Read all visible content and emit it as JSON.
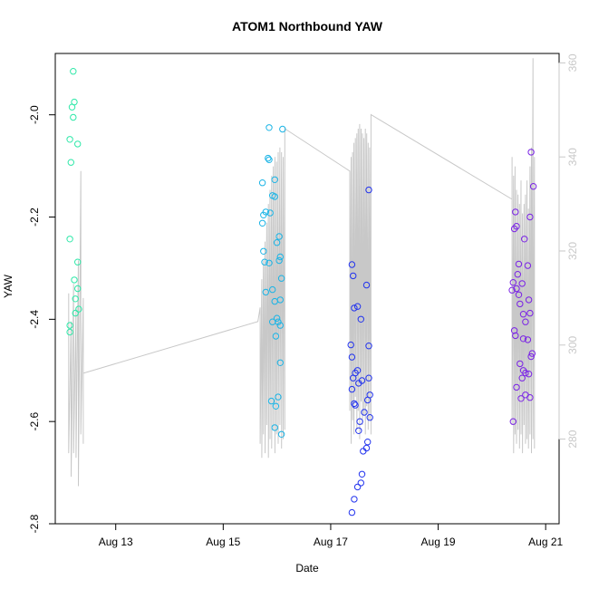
{
  "chart_data": {
    "type": "scatter",
    "title": "ATOM1 Northbound YAW",
    "xlabel": "Date",
    "ylabel": "YAW",
    "xlim": [
      "2014-08-11T21:00",
      "2014-08-21T06:00"
    ],
    "ylim": [
      -2.8,
      -1.88
    ],
    "y2lim": [
      262,
      362
    ],
    "x_ticks": [
      {
        "label": "Aug 13",
        "date": "2014-08-13"
      },
      {
        "label": "Aug 15",
        "date": "2014-08-15"
      },
      {
        "label": "Aug 17",
        "date": "2014-08-17"
      },
      {
        "label": "Aug 19",
        "date": "2014-08-19"
      },
      {
        "label": "Aug 21",
        "date": "2014-08-21"
      }
    ],
    "y_ticks": [
      "-2.8",
      "-2.6",
      "-2.4",
      "-2.2",
      "-2.0"
    ],
    "y2_ticks": [
      "280",
      "300",
      "320",
      "340",
      "360"
    ],
    "colors": {
      "group1": "#2ee8a8",
      "group2": "#1ab4e6",
      "group3": "#2233ee",
      "group4": "#7a22e6",
      "line": "#c8c8c8",
      "axis": "#000000",
      "right_axis": "#c8c8c8"
    },
    "series": [
      {
        "group": "group1",
        "points": [
          [
            "2014-08-12T05:00",
            -1.915
          ],
          [
            "2014-08-12T05:30",
            -1.975
          ],
          [
            "2014-08-12T04:30",
            -1.985
          ],
          [
            "2014-08-12T05:00",
            -2.005
          ],
          [
            "2014-08-12T03:30",
            -2.048
          ],
          [
            "2014-08-12T07:00",
            -2.057
          ],
          [
            "2014-08-12T04:00",
            -2.093
          ],
          [
            "2014-08-12T03:30",
            -2.243
          ],
          [
            "2014-08-12T07:00",
            -2.288
          ],
          [
            "2014-08-12T05:30",
            -2.323
          ],
          [
            "2014-08-12T07:00",
            -2.34
          ],
          [
            "2014-08-12T06:00",
            -2.36
          ],
          [
            "2014-08-12T07:30",
            -2.38
          ],
          [
            "2014-08-12T06:00",
            -2.388
          ],
          [
            "2014-08-12T03:30",
            -2.412
          ],
          [
            "2014-08-12T03:30",
            -2.425
          ]
        ]
      },
      {
        "group": "group2",
        "points": [
          [
            "2014-08-15T20:30",
            -2.025
          ],
          [
            "2014-08-16T02:30",
            -2.028
          ],
          [
            "2014-08-15T20:00",
            -2.085
          ],
          [
            "2014-08-15T20:30",
            -2.088
          ],
          [
            "2014-08-15T23:00",
            -2.127
          ],
          [
            "2014-08-15T17:30",
            -2.133
          ],
          [
            "2014-08-15T22:00",
            -2.158
          ],
          [
            "2014-08-15T23:00",
            -2.16
          ],
          [
            "2014-08-15T19:00",
            -2.19
          ],
          [
            "2014-08-15T21:00",
            -2.192
          ],
          [
            "2014-08-15T18:00",
            -2.196
          ],
          [
            "2014-08-15T17:30",
            -2.212
          ],
          [
            "2014-08-16T01:00",
            -2.238
          ],
          [
            "2014-08-16T00:00",
            -2.25
          ],
          [
            "2014-08-15T18:00",
            -2.267
          ],
          [
            "2014-08-16T01:30",
            -2.278
          ],
          [
            "2014-08-16T01:00",
            -2.285
          ],
          [
            "2014-08-15T18:30",
            -2.288
          ],
          [
            "2014-08-15T20:30",
            -2.29
          ],
          [
            "2014-08-16T02:00",
            -2.32
          ],
          [
            "2014-08-15T22:00",
            -2.342
          ],
          [
            "2014-08-15T19:00",
            -2.347
          ],
          [
            "2014-08-15T23:00",
            -2.365
          ],
          [
            "2014-08-16T01:30",
            -2.362
          ],
          [
            "2014-08-16T00:00",
            -2.398
          ],
          [
            "2014-08-15T22:00",
            -2.405
          ],
          [
            "2014-08-16T00:30",
            -2.405
          ],
          [
            "2014-08-16T01:30",
            -2.412
          ],
          [
            "2014-08-15T23:30",
            -2.433
          ],
          [
            "2014-08-16T01:30",
            -2.485
          ],
          [
            "2014-08-16T00:30",
            -2.552
          ],
          [
            "2014-08-15T21:30",
            -2.56
          ],
          [
            "2014-08-15T23:30",
            -2.57
          ],
          [
            "2014-08-15T23:00",
            -2.612
          ],
          [
            "2014-08-16T02:00",
            -2.625
          ]
        ]
      },
      {
        "group": "group3",
        "points": [
          [
            "2014-08-17T17:00",
            -2.147
          ],
          [
            "2014-08-17T09:30",
            -2.293
          ],
          [
            "2014-08-17T10:00",
            -2.315
          ],
          [
            "2014-08-17T16:00",
            -2.333
          ],
          [
            "2014-08-17T12:00",
            -2.375
          ],
          [
            "2014-08-17T10:30",
            -2.378
          ],
          [
            "2014-08-17T13:30",
            -2.4
          ],
          [
            "2014-08-17T09:00",
            -2.45
          ],
          [
            "2014-08-17T17:00",
            -2.452
          ],
          [
            "2014-08-17T09:30",
            -2.474
          ],
          [
            "2014-08-17T12:00",
            -2.5
          ],
          [
            "2014-08-17T11:00",
            -2.505
          ],
          [
            "2014-08-17T10:00",
            -2.515
          ],
          [
            "2014-08-17T17:00",
            -2.515
          ],
          [
            "2014-08-17T14:00",
            -2.52
          ],
          [
            "2014-08-17T12:30",
            -2.525
          ],
          [
            "2014-08-17T09:30",
            -2.537
          ],
          [
            "2014-08-17T17:30",
            -2.548
          ],
          [
            "2014-08-17T16:30",
            -2.558
          ],
          [
            "2014-08-17T10:30",
            -2.565
          ],
          [
            "2014-08-17T11:00",
            -2.568
          ],
          [
            "2014-08-17T15:00",
            -2.582
          ],
          [
            "2014-08-17T17:30",
            -2.592
          ],
          [
            "2014-08-17T13:00",
            -2.6
          ],
          [
            "2014-08-17T12:30",
            -2.618
          ],
          [
            "2014-08-17T16:30",
            -2.64
          ],
          [
            "2014-08-17T16:00",
            -2.652
          ],
          [
            "2014-08-17T14:30",
            -2.658
          ],
          [
            "2014-08-17T14:00",
            -2.703
          ],
          [
            "2014-08-17T13:30",
            -2.72
          ],
          [
            "2014-08-17T12:00",
            -2.728
          ],
          [
            "2014-08-17T10:30",
            -2.752
          ],
          [
            "2014-08-17T09:30",
            -2.778
          ]
        ]
      },
      {
        "group": "group4",
        "points": [
          [
            "2014-08-20T17:30",
            -2.073
          ],
          [
            "2014-08-20T18:30",
            -2.14
          ],
          [
            "2014-08-20T10:30",
            -2.19
          ],
          [
            "2014-08-20T17:00",
            -2.2
          ],
          [
            "2014-08-20T11:00",
            -2.218
          ],
          [
            "2014-08-20T10:00",
            -2.223
          ],
          [
            "2014-08-20T14:30",
            -2.243
          ],
          [
            "2014-08-20T12:00",
            -2.292
          ],
          [
            "2014-08-20T16:00",
            -2.295
          ],
          [
            "2014-08-20T11:30",
            -2.312
          ],
          [
            "2014-08-20T09:30",
            -2.328
          ],
          [
            "2014-08-20T13:30",
            -2.33
          ],
          [
            "2014-08-20T11:00",
            -2.34
          ],
          [
            "2014-08-20T09:00",
            -2.343
          ],
          [
            "2014-08-20T12:00",
            -2.352
          ],
          [
            "2014-08-20T16:30",
            -2.362
          ],
          [
            "2014-08-20T12:30",
            -2.37
          ],
          [
            "2014-08-20T17:00",
            -2.388
          ],
          [
            "2014-08-20T14:00",
            -2.39
          ],
          [
            "2014-08-20T15:00",
            -2.405
          ],
          [
            "2014-08-20T10:00",
            -2.422
          ],
          [
            "2014-08-20T10:30",
            -2.432
          ],
          [
            "2014-08-20T14:00",
            -2.438
          ],
          [
            "2014-08-20T16:00",
            -2.44
          ],
          [
            "2014-08-20T18:00",
            -2.467
          ],
          [
            "2014-08-20T17:30",
            -2.473
          ],
          [
            "2014-08-20T12:30",
            -2.487
          ],
          [
            "2014-08-20T14:00",
            -2.5
          ],
          [
            "2014-08-20T15:00",
            -2.505
          ],
          [
            "2014-08-20T16:30",
            -2.507
          ],
          [
            "2014-08-20T13:30",
            -2.515
          ],
          [
            "2014-08-20T11:00",
            -2.533
          ],
          [
            "2014-08-20T15:00",
            -2.548
          ],
          [
            "2014-08-20T17:00",
            -2.553
          ],
          [
            "2014-08-20T13:00",
            -2.555
          ],
          [
            "2014-08-20T09:30",
            -2.6
          ]
        ]
      }
    ],
    "line_series": {
      "axis": "right",
      "clusters": [
        {
          "start": "2014-08-12T03:00",
          "end": "2014-08-12T09:30",
          "n": 7,
          "min": [
            277,
            272,
            277,
            276,
            270,
            281,
            279
          ],
          "max": [
            311,
            305,
            313,
            308,
            318,
            337,
            310
          ],
          "last": 294
        },
        {
          "start": "2014-08-15T16:30",
          "end": "2014-08-16T03:30",
          "n": 16,
          "min": [
            279,
            276,
            281,
            277,
            283,
            276,
            280,
            278,
            282,
            277,
            281,
            279,
            283,
            278,
            280,
            282
          ],
          "max": [
            308,
            314,
            318,
            322,
            326,
            330,
            333,
            336,
            338,
            340,
            339,
            341,
            342,
            341,
            340,
            342
          ],
          "last": 346
        },
        {
          "start": "2014-08-17T08:30",
          "end": "2014-08-17T18:00",
          "n": 16,
          "min": [
            286,
            279,
            284,
            281,
            289,
            282,
            286,
            280,
            288,
            283,
            285,
            281,
            287,
            282,
            284,
            281
          ],
          "max": [
            336,
            340,
            341,
            343,
            344,
            345,
            346,
            347,
            346,
            345,
            344,
            346,
            345,
            343,
            342,
            341
          ],
          "last": 349
        },
        {
          "start": "2014-08-20T09:00",
          "end": "2014-08-20T19:00",
          "n": 16,
          "min": [
            283,
            277,
            281,
            279,
            282,
            278,
            281,
            277,
            283,
            279,
            280,
            278,
            281,
            277,
            280,
            278
          ],
          "max": [
            340,
            336,
            338,
            333,
            332,
            330,
            335,
            328,
            330,
            332,
            335,
            329,
            338,
            342,
            361,
            340
          ],
          "last": 340
        }
      ],
      "connectors": [
        [
          [
            "2014-08-12T09:30",
            294
          ],
          [
            "2014-08-15T15:30",
            305
          ]
        ],
        [
          [
            "2014-08-16T03:30",
            346
          ],
          [
            "2014-08-17T08:30",
            337
          ]
        ],
        [
          [
            "2014-08-17T18:00",
            349
          ],
          [
            "2014-08-20T09:00",
            331
          ]
        ]
      ]
    }
  }
}
